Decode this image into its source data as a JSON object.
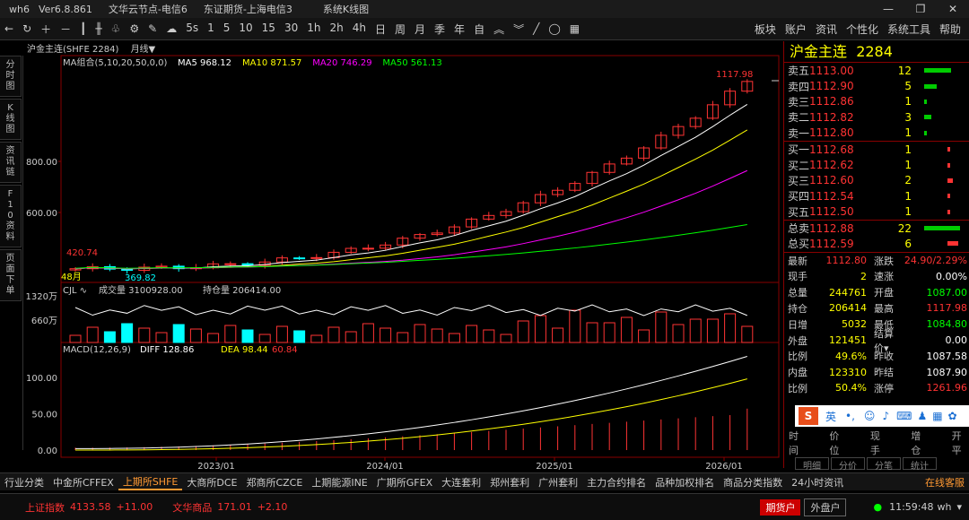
{
  "titlebar": {
    "app": "wh6",
    "version": "Ver6.8.861",
    "server1": "文华云节点-电信6",
    "server2": "东证期货-上海电信3",
    "window": "系统K线图"
  },
  "toolbar": {
    "periods": [
      "5s",
      "1",
      "5",
      "10",
      "15",
      "30",
      "1h",
      "2h",
      "4h",
      "日",
      "周",
      "月",
      "季",
      "年",
      "自"
    ],
    "right": [
      "板块",
      "账户",
      "资讯",
      "个性化",
      "系统工具",
      "帮助"
    ]
  },
  "sidetabs": [
    "分时图",
    "K线图",
    "资讯链",
    "F10资料",
    "页面下单"
  ],
  "chart": {
    "name": "沪金主连(SHFE 2284)",
    "period": "月线▼",
    "ma": {
      "label": "MA组合(5,10,20,50,0,0)",
      "ma5": "MA5 968.12",
      "ma10": "MA10 871.57",
      "ma20": "MA20 746.29",
      "ma50": "MA50 561.13"
    },
    "high_label": "1117.98",
    "low_label": "369.82",
    "left_label": "420.74",
    "left_bottom": "48月",
    "yticks": [
      "800.00",
      "600.00"
    ],
    "vol": {
      "label": "CJL",
      "vol": "成交量 3100928.00",
      "oi": "持仓量 206414.00",
      "yticks": [
        "1320万",
        "660万"
      ]
    },
    "macd": {
      "label": "MACD(12,26,9)",
      "diff": "DIFF 128.86",
      "dea": "DEA 98.44",
      "macd": "60.84",
      "yticks": [
        "100.00",
        "50.00",
        "0.00"
      ]
    },
    "xticks": [
      "2023/01",
      "2024/01",
      "2025/01",
      "2026/01"
    ]
  },
  "colors": {
    "up": "#ff3333",
    "down": "#00ffff",
    "ma5": "#ffffff",
    "ma10": "#ffff00",
    "ma20": "#ff00ff",
    "ma50": "#00ff00"
  },
  "panel": {
    "title": "沪金主连",
    "code": "2284",
    "sell": [
      {
        "l": "卖五",
        "p": "1113.00",
        "v": "12",
        "f": 0.75
      },
      {
        "l": "卖四",
        "p": "1112.90",
        "v": "5",
        "f": 0.35
      },
      {
        "l": "卖三",
        "p": "1112.86",
        "v": "1",
        "f": 0.08
      },
      {
        "l": "卖二",
        "p": "1112.82",
        "v": "3",
        "f": 0.2
      },
      {
        "l": "卖一",
        "p": "1112.80",
        "v": "1",
        "f": 0.08
      }
    ],
    "buy": [
      {
        "l": "买一",
        "p": "1112.68",
        "v": "1",
        "f": 0.08
      },
      {
        "l": "买二",
        "p": "1112.62",
        "v": "1",
        "f": 0.08
      },
      {
        "l": "买三",
        "p": "1112.60",
        "v": "2",
        "f": 0.15
      },
      {
        "l": "买四",
        "p": "1112.54",
        "v": "1",
        "f": 0.08
      },
      {
        "l": "买五",
        "p": "1112.50",
        "v": "1",
        "f": 0.08
      }
    ],
    "total": [
      {
        "l": "总卖",
        "p": "1112.88",
        "v": "22",
        "f": 1.0,
        "c": "g"
      },
      {
        "l": "总买",
        "p": "1112.59",
        "v": "6",
        "f": 0.3,
        "c": "r"
      }
    ],
    "stats": [
      [
        "最新",
        "1112.80",
        "r",
        "涨跌",
        "24.90/2.29%",
        "r"
      ],
      [
        "现手",
        "2",
        "y",
        "速涨",
        "0.00%",
        "w"
      ],
      [
        "总量",
        "244761",
        "y",
        "开盘",
        "1087.00",
        "g"
      ],
      [
        "持仓",
        "206414",
        "y",
        "最高",
        "1117.98",
        "r"
      ],
      [
        "日增",
        "5032",
        "y",
        "最低",
        "1084.80",
        "g"
      ],
      [
        "外盘",
        "121451",
        "y",
        "结算价▾",
        "0.00",
        "w"
      ],
      [
        "比例",
        "49.6%",
        "y",
        "昨收",
        "1087.58",
        "w"
      ],
      [
        "内盘",
        "123310",
        "y",
        "昨结",
        "1087.90",
        "w"
      ],
      [
        "比例",
        "50.4%",
        "y",
        "涨停",
        "1261.96",
        "r"
      ]
    ],
    "ime": "英",
    "timehdr": [
      "时间",
      "价位",
      "现手",
      "增仓",
      "开平"
    ],
    "tabs": [
      "明细",
      "分价",
      "分笔",
      "统计"
    ]
  },
  "btabs": {
    "items": [
      "行业分类",
      "中金所CFFEX",
      "上期所SHFE",
      "大商所DCE",
      "郑商所CZCE",
      "上期能源INE",
      "广期所GFEX",
      "大连套利",
      "郑州套利",
      "广州套利",
      "主力合约排名",
      "品种加权排名",
      "商品分类指数",
      "24小时资讯"
    ],
    "active": 2,
    "service": "在线客服"
  },
  "status": {
    "idx1": "上证指数",
    "idx1v": "4133.58",
    "idx1c": "+11.00",
    "idx2": "文华商品",
    "idx2v": "171.01",
    "idx2c": "+2.10",
    "b1": "期货户",
    "b2": "外盘户",
    "time": "11:59:48",
    "user": "wh"
  }
}
